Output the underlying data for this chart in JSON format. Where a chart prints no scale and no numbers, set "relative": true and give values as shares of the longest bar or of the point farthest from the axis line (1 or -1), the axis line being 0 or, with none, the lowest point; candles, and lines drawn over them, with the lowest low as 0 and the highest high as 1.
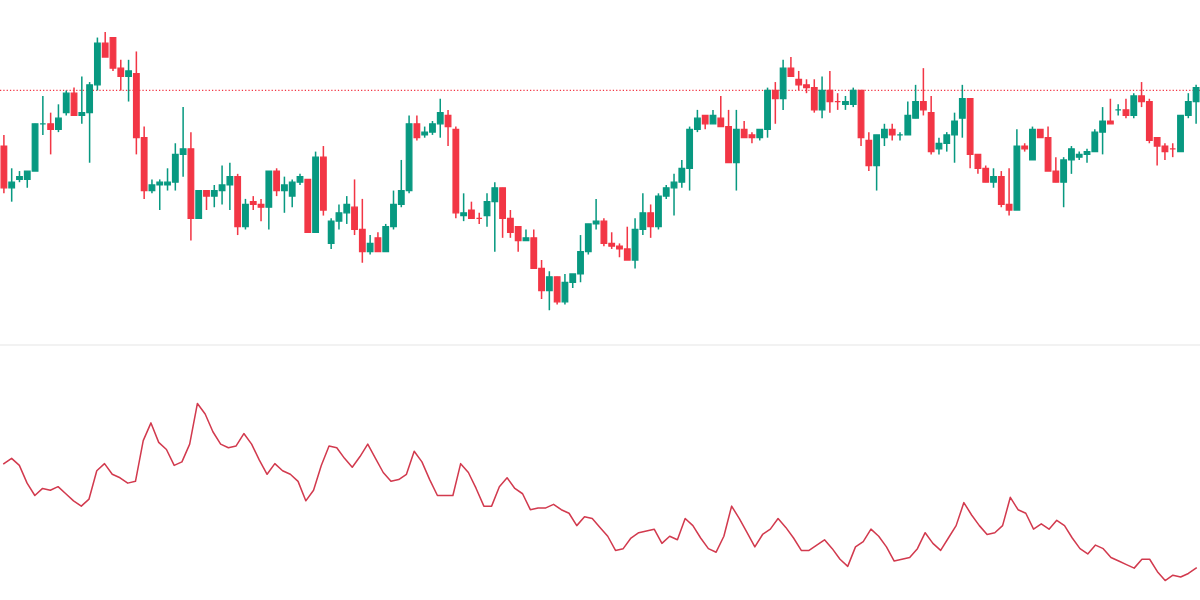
{
  "chart_data": [
    {
      "type": "candlestick",
      "relative": true,
      "categories": [
        null,
        null,
        null,
        null,
        null,
        null,
        null,
        null,
        null,
        null,
        null,
        null,
        null,
        null,
        null,
        null,
        null,
        null,
        null,
        null,
        null,
        null,
        null,
        null,
        null,
        null,
        null,
        null,
        null,
        null,
        null,
        null,
        null,
        null,
        null,
        null,
        null,
        null,
        null,
        null,
        null,
        null,
        null,
        null,
        null,
        null,
        null,
        null,
        null,
        null,
        null,
        null,
        null,
        null,
        null,
        null,
        null,
        null,
        null,
        null,
        null,
        null,
        null,
        null,
        null,
        null,
        null,
        null,
        null,
        null,
        null,
        null,
        null,
        null,
        null,
        null,
        null,
        null,
        null,
        null,
        null,
        null,
        null,
        null,
        null,
        null,
        null,
        null,
        null,
        null,
        null,
        null,
        null,
        null,
        null,
        null,
        null,
        null,
        null,
        null,
        null,
        null,
        null,
        null,
        null,
        null,
        null,
        null,
        null,
        null,
        null,
        null,
        null,
        null,
        null,
        null,
        null,
        null,
        null,
        null,
        null,
        null,
        null,
        null,
        null,
        null,
        null,
        null,
        null,
        null,
        null,
        null,
        null,
        null,
        null,
        null,
        null,
        null,
        null,
        null,
        null,
        null,
        null,
        null,
        null,
        null,
        null,
        null,
        null,
        null,
        null,
        null,
        null,
        null
      ],
      "ohlc": [
        [
          0.59,
          0.63,
          0.42,
          0.44
        ],
        [
          0.44,
          0.51,
          0.39,
          0.46
        ],
        [
          0.47,
          0.5,
          0.46,
          0.48
        ],
        [
          0.47,
          0.5,
          0.44,
          0.5
        ],
        [
          0.5,
          0.67,
          0.5,
          0.67
        ],
        [
          0.67,
          0.77,
          0.63,
          0.67
        ],
        [
          0.67,
          0.71,
          0.56,
          0.65
        ],
        [
          0.65,
          0.74,
          0.64,
          0.69
        ],
        [
          0.71,
          0.79,
          0.7,
          0.78
        ],
        [
          0.78,
          0.8,
          0.7,
          0.7
        ],
        [
          0.7,
          0.84,
          0.67,
          0.71
        ],
        [
          0.71,
          0.82,
          0.53,
          0.81
        ],
        [
          0.81,
          0.98,
          0.79,
          0.96
        ],
        [
          0.96,
          1.0,
          0.91,
          0.91
        ],
        [
          0.98,
          0.98,
          0.86,
          0.87
        ],
        [
          0.87,
          0.9,
          0.79,
          0.84
        ],
        [
          0.84,
          0.9,
          0.75,
          0.86
        ],
        [
          0.85,
          0.93,
          0.56,
          0.62
        ],
        [
          0.62,
          0.66,
          0.4,
          0.43
        ],
        [
          0.43,
          0.47,
          0.42,
          0.45
        ],
        [
          0.45,
          0.47,
          0.36,
          0.46
        ],
        [
          0.45,
          0.51,
          0.43,
          0.46
        ],
        [
          0.46,
          0.6,
          0.43,
          0.56
        ],
        [
          0.56,
          0.73,
          0.48,
          0.58
        ],
        [
          0.58,
          0.64,
          0.25,
          0.33
        ],
        [
          0.33,
          0.43,
          0.33,
          0.43
        ],
        [
          0.43,
          0.43,
          0.36,
          0.41
        ],
        [
          0.41,
          0.45,
          0.37,
          0.43
        ],
        [
          0.43,
          0.52,
          0.38,
          0.45
        ],
        [
          0.45,
          0.53,
          0.36,
          0.48
        ],
        [
          0.48,
          0.49,
          0.27,
          0.3
        ],
        [
          0.3,
          0.4,
          0.29,
          0.38
        ],
        [
          0.39,
          0.41,
          0.36,
          0.38
        ],
        [
          0.38,
          0.4,
          0.32,
          0.37
        ],
        [
          0.37,
          0.5,
          0.29,
          0.5
        ],
        [
          0.5,
          0.51,
          0.41,
          0.43
        ],
        [
          0.43,
          0.48,
          0.35,
          0.45
        ],
        [
          0.41,
          0.47,
          0.37,
          0.46
        ],
        [
          0.46,
          0.49,
          0.45,
          0.48
        ],
        [
          0.47,
          0.47,
          0.28,
          0.28
        ],
        [
          0.28,
          0.57,
          0.28,
          0.55
        ],
        [
          0.55,
          0.59,
          0.34,
          0.36
        ],
        [
          0.24,
          0.33,
          0.22,
          0.32
        ],
        [
          0.32,
          0.38,
          0.29,
          0.35
        ],
        [
          0.35,
          0.41,
          0.31,
          0.38
        ],
        [
          0.37,
          0.47,
          0.27,
          0.29
        ],
        [
          0.29,
          0.4,
          0.17,
          0.21
        ],
        [
          0.21,
          0.27,
          0.2,
          0.24
        ],
        [
          0.26,
          0.28,
          0.21,
          0.21
        ],
        [
          0.21,
          0.31,
          0.21,
          0.3
        ],
        [
          0.3,
          0.43,
          0.29,
          0.38
        ],
        [
          0.38,
          0.54,
          0.37,
          0.43
        ],
        [
          0.43,
          0.7,
          0.42,
          0.67
        ],
        [
          0.67,
          0.7,
          0.61,
          0.62
        ],
        [
          0.63,
          0.66,
          0.62,
          0.64
        ],
        [
          0.64,
          0.68,
          0.63,
          0.67
        ],
        [
          0.67,
          0.76,
          0.62,
          0.71
        ],
        [
          0.7,
          0.72,
          0.59,
          0.66
        ],
        [
          0.65,
          0.66,
          0.33,
          0.35
        ],
        [
          0.34,
          0.42,
          0.32,
          0.35
        ],
        [
          0.36,
          0.39,
          0.33,
          0.33
        ],
        [
          0.33,
          0.35,
          0.31,
          0.33
        ],
        [
          0.34,
          0.42,
          0.3,
          0.39
        ],
        [
          0.39,
          0.46,
          0.21,
          0.44
        ],
        [
          0.44,
          0.44,
          0.26,
          0.33
        ],
        [
          0.33,
          0.36,
          0.26,
          0.28
        ],
        [
          0.3,
          0.3,
          0.21,
          0.25
        ],
        [
          0.25,
          0.29,
          0.25,
          0.26
        ],
        [
          0.26,
          0.29,
          0.15,
          0.15
        ],
        [
          0.15,
          0.18,
          0.04,
          0.07
        ],
        [
          0.07,
          0.14,
          0.0,
          0.12
        ],
        [
          0.12,
          0.12,
          0.02,
          0.03
        ],
        [
          0.03,
          0.13,
          0.02,
          0.1
        ],
        [
          0.1,
          0.13,
          0.08,
          0.13
        ],
        [
          0.13,
          0.27,
          0.1,
          0.21
        ],
        [
          0.21,
          0.31,
          0.2,
          0.31
        ],
        [
          0.31,
          0.4,
          0.29,
          0.32
        ],
        [
          0.32,
          0.33,
          0.23,
          0.24
        ],
        [
          0.24,
          0.28,
          0.22,
          0.23
        ],
        [
          0.23,
          0.24,
          0.19,
          0.22
        ],
        [
          0.22,
          0.3,
          0.18,
          0.18
        ],
        [
          0.18,
          0.33,
          0.15,
          0.29
        ],
        [
          0.29,
          0.42,
          0.27,
          0.35
        ],
        [
          0.35,
          0.38,
          0.26,
          0.3
        ],
        [
          0.3,
          0.42,
          0.29,
          0.41
        ],
        [
          0.41,
          0.45,
          0.4,
          0.44
        ],
        [
          0.44,
          0.49,
          0.34,
          0.46
        ],
        [
          0.46,
          0.54,
          0.44,
          0.51
        ],
        [
          0.51,
          0.66,
          0.43,
          0.65
        ],
        [
          0.65,
          0.72,
          0.64,
          0.69
        ],
        [
          0.7,
          0.7,
          0.65,
          0.67
        ],
        [
          0.67,
          0.72,
          0.67,
          0.7
        ],
        [
          0.69,
          0.77,
          0.66,
          0.66
        ],
        [
          0.66,
          0.72,
          0.53,
          0.53
        ],
        [
          0.53,
          0.72,
          0.43,
          0.65
        ],
        [
          0.65,
          0.68,
          0.62,
          0.62
        ],
        [
          0.63,
          0.64,
          0.6,
          0.62
        ],
        [
          0.62,
          0.65,
          0.61,
          0.65
        ],
        [
          0.65,
          0.8,
          0.62,
          0.79
        ],
        [
          0.79,
          0.82,
          0.67,
          0.76
        ],
        [
          0.76,
          0.9,
          0.72,
          0.87
        ],
        [
          0.87,
          0.91,
          0.84,
          0.84
        ],
        [
          0.83,
          0.86,
          0.79,
          0.81
        ],
        [
          0.81,
          0.83,
          0.78,
          0.8
        ],
        [
          0.8,
          0.83,
          0.71,
          0.72
        ],
        [
          0.72,
          0.84,
          0.69,
          0.79
        ],
        [
          0.79,
          0.86,
          0.71,
          0.75
        ],
        [
          0.75,
          0.78,
          0.72,
          0.75
        ],
        [
          0.74,
          0.77,
          0.72,
          0.75
        ],
        [
          0.74,
          0.8,
          0.73,
          0.79
        ],
        [
          0.79,
          0.79,
          0.59,
          0.62
        ],
        [
          0.61,
          0.64,
          0.5,
          0.52
        ],
        [
          0.52,
          0.63,
          0.43,
          0.63
        ],
        [
          0.62,
          0.67,
          0.59,
          0.65
        ],
        [
          0.65,
          0.67,
          0.61,
          0.63
        ],
        [
          0.63,
          0.64,
          0.61,
          0.63
        ],
        [
          0.63,
          0.75,
          0.63,
          0.7
        ],
        [
          0.69,
          0.81,
          0.69,
          0.75
        ],
        [
          0.75,
          0.87,
          0.7,
          0.72
        ],
        [
          0.71,
          0.77,
          0.56,
          0.57
        ],
        [
          0.58,
          0.62,
          0.56,
          0.6
        ],
        [
          0.6,
          0.64,
          0.57,
          0.63
        ],
        [
          0.63,
          0.71,
          0.53,
          0.68
        ],
        [
          0.69,
          0.81,
          0.62,
          0.76
        ],
        [
          0.76,
          0.76,
          0.51,
          0.56
        ],
        [
          0.56,
          0.56,
          0.49,
          0.51
        ],
        [
          0.51,
          0.52,
          0.46,
          0.46
        ],
        [
          0.46,
          0.51,
          0.44,
          0.48
        ],
        [
          0.48,
          0.5,
          0.37,
          0.38
        ],
        [
          0.38,
          0.51,
          0.34,
          0.36
        ],
        [
          0.36,
          0.65,
          0.36,
          0.59
        ],
        [
          0.59,
          0.6,
          0.57,
          0.58
        ],
        [
          0.54,
          0.66,
          0.54,
          0.65
        ],
        [
          0.65,
          0.65,
          0.62,
          0.62
        ],
        [
          0.62,
          0.66,
          0.5,
          0.5
        ],
        [
          0.5,
          0.55,
          0.46,
          0.46
        ],
        [
          0.46,
          0.55,
          0.37,
          0.54
        ],
        [
          0.54,
          0.59,
          0.49,
          0.58
        ],
        [
          0.55,
          0.57,
          0.54,
          0.56
        ],
        [
          0.56,
          0.58,
          0.53,
          0.57
        ],
        [
          0.57,
          0.65,
          0.57,
          0.64
        ],
        [
          0.64,
          0.73,
          0.56,
          0.68
        ],
        [
          0.68,
          0.76,
          0.67,
          0.67
        ],
        [
          0.72,
          0.74,
          0.7,
          0.72
        ],
        [
          0.72,
          0.76,
          0.69,
          0.7
        ],
        [
          0.7,
          0.78,
          0.69,
          0.77
        ],
        [
          0.77,
          0.82,
          0.73,
          0.75
        ],
        [
          0.75,
          0.76,
          0.6,
          0.61
        ],
        [
          0.62,
          0.62,
          0.52,
          0.59
        ],
        [
          0.59,
          0.6,
          0.54,
          0.57
        ],
        [
          0.58,
          0.6,
          0.55,
          0.58
        ],
        [
          0.57,
          0.7,
          0.57,
          0.7
        ],
        [
          0.7,
          0.78,
          0.69,
          0.75
        ],
        [
          0.75,
          0.81,
          0.67,
          0.8
        ]
      ],
      "colors": [
        "#f23645",
        "#089981",
        "#089981",
        "#089981",
        "#089981",
        "#089981",
        "#f23645",
        "#089981",
        "#089981",
        "#f23645",
        "#089981",
        "#089981",
        "#089981",
        "#f23645",
        "#f23645",
        "#f23645",
        "#089981",
        "#f23645",
        "#f23645",
        "#089981",
        "#089981",
        "#089981",
        "#089981",
        "#089981",
        "#f23645",
        "#089981",
        "#f23645",
        "#089981",
        "#089981",
        "#089981",
        "#f23645",
        "#089981",
        "#f23645",
        "#f23645",
        "#089981",
        "#f23645",
        "#089981",
        "#089981",
        "#089981",
        "#f23645",
        "#089981",
        "#f23645",
        "#089981",
        "#089981",
        "#089981",
        "#f23645",
        "#f23645",
        "#089981",
        "#f23645",
        "#089981",
        "#089981",
        "#089981",
        "#089981",
        "#f23645",
        "#089981",
        "#089981",
        "#089981",
        "#f23645",
        "#f23645",
        "#089981",
        "#f23645",
        "#f23645",
        "#089981",
        "#089981",
        "#f23645",
        "#f23645",
        "#f23645",
        "#089981",
        "#f23645",
        "#f23645",
        "#089981",
        "#f23645",
        "#089981",
        "#089981",
        "#089981",
        "#089981",
        "#089981",
        "#f23645",
        "#f23645",
        "#f23645",
        "#f23645",
        "#089981",
        "#089981",
        "#f23645",
        "#089981",
        "#089981",
        "#089981",
        "#089981",
        "#089981",
        "#089981",
        "#f23645",
        "#089981",
        "#f23645",
        "#f23645",
        "#089981",
        "#f23645",
        "#f23645",
        "#089981",
        "#089981",
        "#f23645",
        "#089981",
        "#f23645",
        "#f23645",
        "#f23645",
        "#f23645",
        "#089981",
        "#f23645",
        "#f23645",
        "#089981",
        "#089981",
        "#f23645",
        "#f23645",
        "#089981",
        "#089981",
        "#f23645",
        "#089981",
        "#089981",
        "#089981",
        "#f23645",
        "#f23645",
        "#089981",
        "#089981",
        "#089981",
        "#089981",
        "#f23645",
        "#f23645",
        "#f23645",
        "#089981",
        "#f23645",
        "#f23645",
        "#089981",
        "#f23645",
        "#089981",
        "#f23645",
        "#f23645",
        "#f23645",
        "#089981",
        "#089981",
        "#089981",
        "#089981",
        "#089981",
        "#089981",
        "#f23645",
        "#089981",
        "#f23645",
        "#089981",
        "#f23645",
        "#f23645",
        "#f23645",
        "#f23645",
        "#f23645",
        "#089981",
        "#089981",
        "#089981"
      ],
      "ref_lines": [
        {
          "axis": "y",
          "value": 0.79,
          "color": "#f23645",
          "line_style": "dotted"
        }
      ]
    },
    {
      "type": "line",
      "relative": true,
      "categories": [
        null,
        null,
        null,
        null,
        null,
        null,
        null,
        null,
        null,
        null,
        null,
        null,
        null,
        null,
        null,
        null,
        null,
        null,
        null,
        null,
        null,
        null,
        null,
        null,
        null,
        null,
        null,
        null,
        null,
        null,
        null,
        null,
        null,
        null,
        null,
        null,
        null,
        null,
        null,
        null,
        null,
        null,
        null,
        null,
        null,
        null,
        null,
        null,
        null,
        null,
        null,
        null,
        null,
        null,
        null,
        null,
        null,
        null,
        null,
        null,
        null,
        null,
        null,
        null,
        null,
        null,
        null,
        null,
        null,
        null,
        null,
        null,
        null,
        null,
        null,
        null,
        null,
        null,
        null,
        null,
        null,
        null,
        null,
        null,
        null,
        null,
        null,
        null,
        null,
        null,
        null,
        null,
        null,
        null,
        null,
        null,
        null,
        null,
        null,
        null,
        null,
        null,
        null,
        null,
        null,
        null,
        null,
        null,
        null,
        null,
        null,
        null,
        null,
        null,
        null,
        null,
        null,
        null,
        null,
        null,
        null,
        null,
        null,
        null,
        null,
        null,
        null,
        null,
        null,
        null,
        null,
        null,
        null,
        null,
        null,
        null,
        null,
        null,
        null,
        null,
        null,
        null,
        null,
        null,
        null,
        null,
        null,
        null,
        null,
        null,
        null,
        null,
        null,
        null,
        null
      ],
      "series": [
        {
          "color": "#d23a4e",
          "values": [
            0.66,
            0.69,
            0.65,
            0.55,
            0.48,
            0.52,
            0.51,
            0.53,
            0.49,
            0.45,
            0.42,
            0.46,
            0.62,
            0.66,
            0.6,
            0.58,
            0.55,
            0.56,
            0.79,
            0.89,
            0.78,
            0.74,
            0.65,
            0.67,
            0.77,
            1.0,
            0.94,
            0.84,
            0.77,
            0.75,
            0.76,
            0.83,
            0.77,
            0.68,
            0.6,
            0.66,
            0.62,
            0.6,
            0.56,
            0.45,
            0.51,
            0.65,
            0.76,
            0.75,
            0.69,
            0.64,
            0.7,
            0.77,
            0.69,
            0.61,
            0.56,
            0.57,
            0.6,
            0.73,
            0.67,
            0.57,
            0.48,
            0.48,
            0.48,
            0.66,
            0.61,
            0.52,
            0.42,
            0.42,
            0.53,
            0.58,
            0.52,
            0.49,
            0.4,
            0.41,
            0.41,
            0.43,
            0.4,
            0.38,
            0.31,
            0.36,
            0.35,
            0.3,
            0.25,
            0.17,
            0.18,
            0.24,
            0.27,
            0.28,
            0.29,
            0.21,
            0.25,
            0.23,
            0.35,
            0.31,
            0.24,
            0.18,
            0.16,
            0.25,
            0.42,
            0.35,
            0.27,
            0.19,
            0.26,
            0.29,
            0.35,
            0.3,
            0.24,
            0.17,
            0.17,
            0.2,
            0.23,
            0.18,
            0.12,
            0.08,
            0.19,
            0.22,
            0.29,
            0.25,
            0.19,
            0.11,
            0.12,
            0.13,
            0.18,
            0.27,
            0.21,
            0.17,
            0.24,
            0.31,
            0.44,
            0.37,
            0.31,
            0.26,
            0.27,
            0.31,
            0.47,
            0.4,
            0.38,
            0.29,
            0.32,
            0.29,
            0.34,
            0.31,
            0.24,
            0.18,
            0.15,
            0.2,
            0.18,
            0.13,
            0.11,
            0.09,
            0.07,
            0.12,
            0.12,
            0.05,
            0.0,
            0.03,
            0.02,
            0.04,
            0.07
          ]
        }
      ]
    }
  ]
}
